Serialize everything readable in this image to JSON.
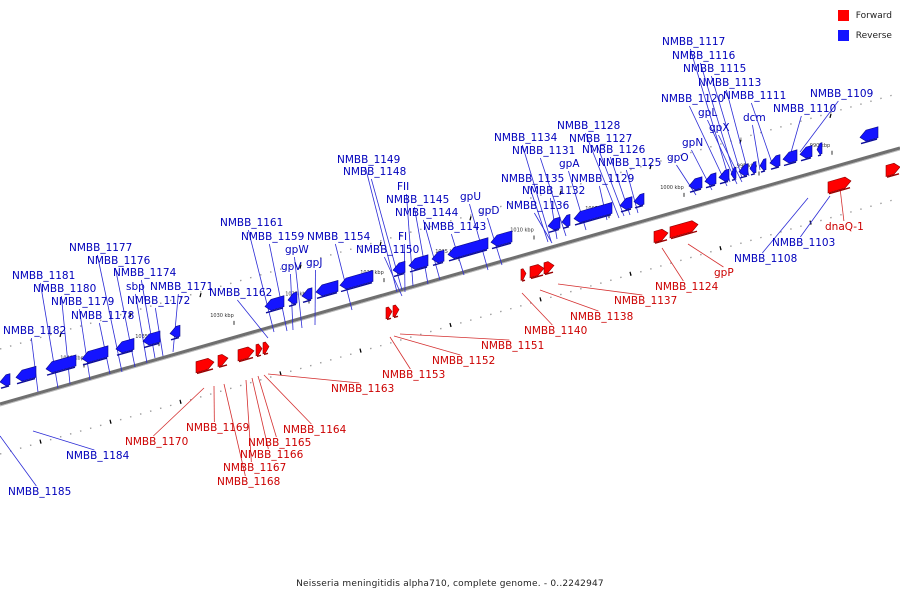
{
  "legend": {
    "forward": {
      "label": "Forward",
      "color": "#ff0000"
    },
    "reverse": {
      "label": "Reverse",
      "color": "#1414ff"
    }
  },
  "caption": "Neisseria meningitidis alpha710, complete genome. - 0..2242947",
  "colors": {
    "forward": "#ff0000",
    "reverse": "#1414ff",
    "backbone": "#888888",
    "label_forward": "#cc0000",
    "label_reverse": "#0000bb"
  },
  "axis": {
    "start_kbp": 990,
    "end_kbp": 1040,
    "tick_labels": [
      "990 kbp",
      "995 kbp",
      "1000 kbp",
      "1005 kbp",
      "1010 kbp",
      "1015 kbp",
      "1020 kbp",
      "1025 kbp",
      "1030 kbp",
      "1035 kbp",
      "1040 kbp"
    ]
  },
  "reverse_labels": [
    "NMBB_1109",
    "NMBB_1110",
    "NMBB_1111",
    "dcm",
    "NMBB_1113",
    "NMBB_1115",
    "NMBB_1116",
    "NMBB_1117",
    "gpX",
    "gpL",
    "NMBB_1120",
    "gpN",
    "gpO",
    "NMBB_1125",
    "NMBB_1126",
    "NMBB_1127",
    "NMBB_1128",
    "NMBB_1129",
    "gpA",
    "NMBB_1131",
    "NMBB_1132",
    "NMBB_1134",
    "NMBB_1135",
    "NMBB_1136",
    "gpD",
    "gpU",
    "NMBB_1143",
    "NMBB_1144",
    "NMBB_1145",
    "FII",
    "NMBB_1148",
    "NMBB_1149",
    "FI",
    "NMBB_1150",
    "NMBB_1154",
    "gpJ",
    "gpV",
    "gpW",
    "NMBB_1159",
    "NMBB_1161",
    "NMBB_1162",
    "NMBB_1171",
    "NMBB_1172",
    "NMBB_1174",
    "sbp",
    "NMBB_1176",
    "NMBB_1177",
    "NMBB_1178",
    "NMBB_1179",
    "NMBB_1180",
    "NMBB_1181",
    "NMBB_1182",
    "NMBB_1103",
    "NMBB_1108",
    "NMBB_1184",
    "NMBB_1185"
  ],
  "forward_labels": [
    "dnaQ-1",
    "gpP",
    "NMBB_1124",
    "NMBB_1137",
    "NMBB_1138",
    "NMBB_1140",
    "NMBB_1151",
    "NMBB_1152",
    "NMBB_1153",
    "NMBB_1163",
    "NMBB_1164",
    "NMBB_1165",
    "NMBB_1166",
    "NMBB_1167",
    "NMBB_1168",
    "NMBB_1169",
    "NMBB_1170"
  ]
}
